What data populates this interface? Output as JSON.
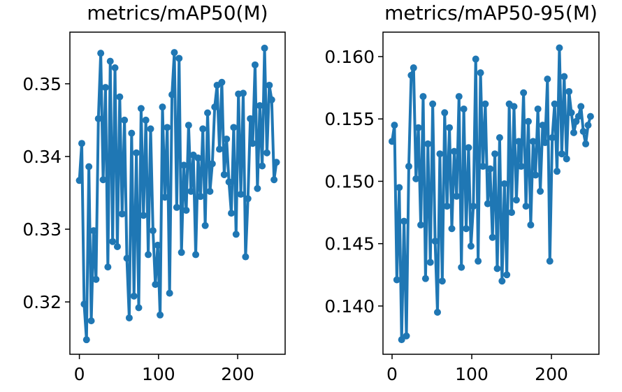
{
  "chart_data": [
    {
      "type": "line",
      "title": "metrics/mAP50(M)",
      "color": "#1f77b4",
      "x": [
        0,
        3,
        6,
        9,
        12,
        15,
        18,
        21,
        24,
        27,
        30,
        33,
        36,
        39,
        42,
        45,
        48,
        51,
        54,
        57,
        60,
        63,
        66,
        69,
        72,
        75,
        78,
        81,
        84,
        87,
        90,
        93,
        96,
        99,
        102,
        105,
        108,
        111,
        114,
        117,
        120,
        123,
        126,
        129,
        132,
        135,
        138,
        141,
        144,
        147,
        150,
        153,
        156,
        159,
        162,
        165,
        168,
        171,
        174,
        177,
        180,
        183,
        186,
        189,
        192,
        195,
        198,
        201,
        204,
        207,
        210,
        213,
        216,
        219,
        222,
        225,
        228,
        231,
        234,
        237,
        240,
        243,
        246,
        249
      ],
      "values": [
        0.3367,
        0.3418,
        0.3197,
        0.3148,
        0.3386,
        0.3174,
        0.3298,
        0.3231,
        0.3452,
        0.3542,
        0.3368,
        0.3495,
        0.3248,
        0.3531,
        0.3283,
        0.3522,
        0.3276,
        0.3482,
        0.3321,
        0.345,
        0.326,
        0.3178,
        0.3432,
        0.3208,
        0.3405,
        0.3192,
        0.3466,
        0.3319,
        0.345,
        0.3265,
        0.3438,
        0.3298,
        0.3224,
        0.3278,
        0.3182,
        0.3468,
        0.3344,
        0.344,
        0.3212,
        0.3485,
        0.3543,
        0.333,
        0.3535,
        0.3268,
        0.3388,
        0.3326,
        0.3443,
        0.3352,
        0.3402,
        0.3265,
        0.3398,
        0.3345,
        0.3438,
        0.3305,
        0.346,
        0.3352,
        0.339,
        0.3468,
        0.3498,
        0.341,
        0.3502,
        0.3375,
        0.3424,
        0.3365,
        0.3322,
        0.344,
        0.3293,
        0.3486,
        0.3348,
        0.3487,
        0.3262,
        0.3342,
        0.3452,
        0.3418,
        0.3526,
        0.3356,
        0.347,
        0.3387,
        0.3549,
        0.3405,
        0.3498,
        0.3478,
        0.3368,
        0.3392
      ],
      "xlim": [
        -12,
        260
      ],
      "xticks": [
        0,
        100,
        200
      ],
      "ylim": [
        0.3128,
        0.3571
      ],
      "yticks": [
        0.32,
        0.33,
        0.34,
        0.35
      ]
    },
    {
      "type": "line",
      "title": "metrics/mAP50-95(M)",
      "color": "#1f77b4",
      "x": [
        0,
        3,
        6,
        9,
        12,
        15,
        18,
        21,
        24,
        27,
        30,
        33,
        36,
        39,
        42,
        45,
        48,
        51,
        54,
        57,
        60,
        63,
        66,
        69,
        72,
        75,
        78,
        81,
        84,
        87,
        90,
        93,
        96,
        99,
        102,
        105,
        108,
        111,
        114,
        117,
        120,
        123,
        126,
        129,
        132,
        135,
        138,
        141,
        144,
        147,
        150,
        153,
        156,
        159,
        162,
        165,
        168,
        171,
        174,
        177,
        180,
        183,
        186,
        189,
        192,
        195,
        198,
        201,
        204,
        207,
        210,
        213,
        216,
        219,
        222,
        225,
        228,
        231,
        234,
        237,
        240,
        243,
        246,
        249
      ],
      "values": [
        0.1532,
        0.1545,
        0.1421,
        0.1495,
        0.1373,
        0.1468,
        0.1376,
        0.1512,
        0.1585,
        0.1591,
        0.1502,
        0.1543,
        0.1465,
        0.1568,
        0.1422,
        0.153,
        0.1435,
        0.1562,
        0.1452,
        0.1395,
        0.1522,
        0.142,
        0.1555,
        0.148,
        0.1543,
        0.1462,
        0.1524,
        0.1488,
        0.1568,
        0.1431,
        0.1558,
        0.1462,
        0.1527,
        0.1448,
        0.148,
        0.1598,
        0.1436,
        0.1587,
        0.1512,
        0.1562,
        0.1482,
        0.151,
        0.1455,
        0.1522,
        0.143,
        0.1535,
        0.142,
        0.1498,
        0.1425,
        0.1562,
        0.1475,
        0.156,
        0.1485,
        0.1532,
        0.1512,
        0.1571,
        0.148,
        0.1548,
        0.1465,
        0.1532,
        0.1505,
        0.1558,
        0.1492,
        0.1545,
        0.1531,
        0.1582,
        0.1436,
        0.1535,
        0.1562,
        0.1508,
        0.1607,
        0.1522,
        0.1584,
        0.1518,
        0.1572,
        0.1555,
        0.1539,
        0.1548,
        0.1552,
        0.156,
        0.154,
        0.153,
        0.1545,
        0.1552
      ],
      "xlim": [
        -11.4,
        259.6
      ],
      "xticks": [
        0,
        100,
        200
      ],
      "ylim": [
        0.13613,
        0.16196
      ],
      "yticks": [
        {
          "value": 0.14,
          "label": "0.140"
        },
        0.145,
        {
          "value": 0.15,
          "label": "0.150"
        },
        0.155,
        {
          "value": 0.16,
          "label": "0.160"
        }
      ]
    }
  ]
}
